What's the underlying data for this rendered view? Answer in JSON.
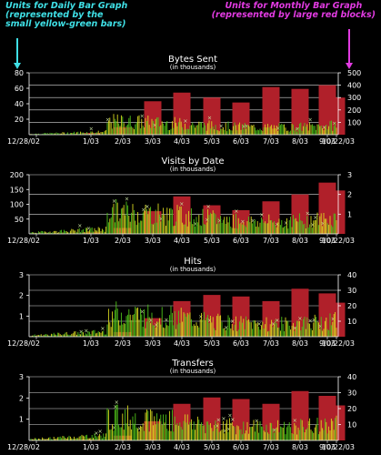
{
  "notes": {
    "left": {
      "lines": [
        "Units for Daily Bar Graph",
        "(represented by the",
        "small yellow-green bars)"
      ],
      "color": "#3fe0e6"
    },
    "right": {
      "lines": [
        "Units for Monthly Bar Graph",
        "(represented by large red blocks)"
      ],
      "color": "#e23be2"
    }
  },
  "colors": {
    "monthly_bar": "#b0202a",
    "daily_yellow": "#d8d820",
    "daily_green": "#4fc21a",
    "daily_trend_marker": "#c8e0a0",
    "gridline": "#ffffff",
    "left_arrow": "#3fe0e6",
    "right_arrow": "#e23be2"
  },
  "chart_data": [
    {
      "type": "bar",
      "title": "Bytes Sent",
      "subtitle": "(in thousands)",
      "x_tick_labels": [
        "12/28/02",
        "1/03",
        "2/03",
        "3/03",
        "4/03",
        "5/03",
        "6/03",
        "7/03",
        "8/03",
        "9/03",
        "10/22/03"
      ],
      "left_axis": {
        "ticks": [
          20,
          40,
          60,
          80
        ],
        "ylim": [
          0,
          80
        ],
        "unit": "daily"
      },
      "right_axis": {
        "ticks": [
          100,
          200,
          300,
          400,
          500
        ],
        "ylim": [
          0,
          500
        ],
        "unit": "monthly"
      },
      "monthly_values": [
        0,
        15,
        60,
        270,
        340,
        300,
        260,
        385,
        370,
        400,
        300
      ],
      "daily_peak_estimate": 25
    },
    {
      "type": "bar",
      "title": "Visits by Date",
      "subtitle": "(in thousands)",
      "x_tick_labels": [
        "12/28/02",
        "1/03",
        "2/03",
        "3/03",
        "4/03",
        "5/03",
        "6/03",
        "7/03",
        "8/03",
        "9/03",
        "10/22/03"
      ],
      "left_axis": {
        "ticks": [
          50,
          100,
          150,
          200
        ],
        "ylim": [
          0,
          200
        ],
        "unit": "daily"
      },
      "right_axis": {
        "ticks": [
          1,
          2,
          3
        ],
        "ylim": [
          0,
          3
        ],
        "unit": "monthly"
      },
      "monthly_values": [
        0,
        0.08,
        0.3,
        1.15,
        1.9,
        1.45,
        1.2,
        1.65,
        2.0,
        2.6,
        2.2
      ],
      "daily_peak_estimate": 110
    },
    {
      "type": "bar",
      "title": "Hits",
      "subtitle": "(in thousands)",
      "x_tick_labels": [
        "12/28/02",
        "1/03",
        "2/03",
        "3/03",
        "4/03",
        "5/03",
        "6/03",
        "7/03",
        "8/03",
        "9/03",
        "10/22/03"
      ],
      "left_axis": {
        "ticks": [
          1,
          2,
          3
        ],
        "ylim": [
          0,
          3
        ],
        "unit": "daily"
      },
      "right_axis": {
        "ticks": [
          10,
          20,
          30,
          40
        ],
        "ylim": [
          0,
          40
        ],
        "unit": "monthly"
      },
      "monthly_values": [
        0,
        0.5,
        3,
        12,
        23,
        27,
        26,
        23,
        31,
        28,
        22
      ],
      "daily_peak_estimate": 1.6
    },
    {
      "type": "bar",
      "title": "Transfers",
      "subtitle": "(in thousands)",
      "x_tick_labels": [
        "12/28/02",
        "1/03",
        "2/03",
        "3/03",
        "4/03",
        "5/03",
        "6/03",
        "7/03",
        "8/03",
        "9/03",
        "10/22/03"
      ],
      "left_axis": {
        "ticks": [
          1,
          2,
          3
        ],
        "ylim": [
          0,
          3
        ],
        "unit": "daily"
      },
      "right_axis": {
        "ticks": [
          10,
          20,
          30,
          40
        ],
        "ylim": [
          0,
          40
        ],
        "unit": "monthly"
      },
      "monthly_values": [
        0,
        0.5,
        3,
        12,
        23,
        27,
        26,
        23,
        31,
        28,
        22
      ],
      "daily_peak_estimate": 1.6
    }
  ]
}
